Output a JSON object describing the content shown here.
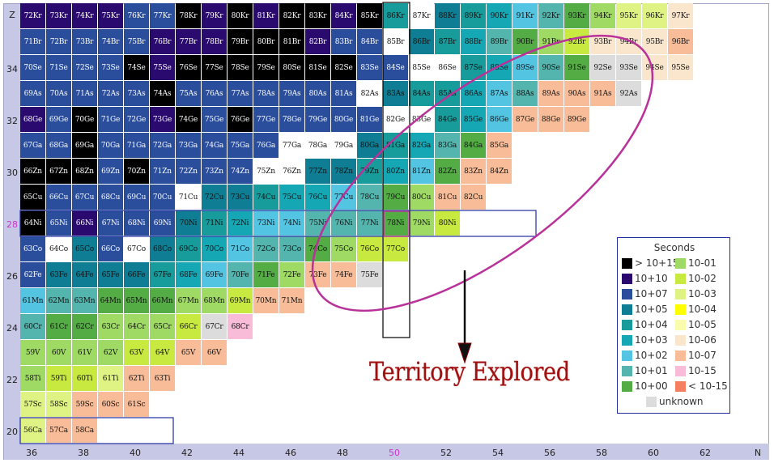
{
  "axes": {
    "z_label": "Z",
    "n_label": "N",
    "z_ticks": [
      "20",
      "22",
      "24",
      "26",
      "28",
      "30",
      "32",
      "34"
    ],
    "n_ticks": [
      "36",
      "38",
      "40",
      "42",
      "44",
      "46",
      "48",
      "50",
      "52",
      "54",
      "56",
      "58",
      "60",
      "62"
    ],
    "magic_z": "28",
    "magic_n": "50"
  },
  "chart_data": {
    "type": "table",
    "description_value_unit": "half-life category (seconds)",
    "rows": [
      {
        "z": 36,
        "symbol": "Kr",
        "n_start": 36,
        "cats": [
          11,
          11,
          11,
          10,
          9,
          9,
          15,
          10,
          15,
          14,
          15,
          15,
          11,
          15,
          4,
          6,
          5,
          4,
          3,
          2,
          1,
          0,
          -1,
          -3,
          -3,
          -6
        ]
      },
      {
        "z": 35,
        "symbol": "Br",
        "n_start": 36,
        "cats": [
          8,
          8,
          7,
          8,
          9,
          10,
          10,
          10,
          15,
          15,
          15,
          10,
          7,
          9,
          6,
          5,
          4,
          3,
          1,
          0,
          -1,
          -2,
          -6,
          -6,
          -6,
          -7
        ]
      },
      {
        "z": 34,
        "symbol": "Se",
        "n_start": 36,
        "cats": [
          8,
          7,
          8,
          9,
          15,
          12,
          15,
          15,
          15,
          15,
          15,
          15,
          15,
          7,
          7,
          6,
          6,
          4,
          3,
          2,
          1,
          0,
          -99,
          -99,
          -6,
          -6
        ]
      },
      {
        "z": 33,
        "symbol": "As",
        "n_start": 36,
        "cats": [
          7,
          8,
          8,
          8,
          8,
          15,
          9,
          8,
          8,
          8,
          7,
          7,
          7,
          6,
          5,
          4,
          4,
          3,
          2,
          1,
          -7,
          -7,
          -7,
          -99
        ]
      },
      {
        "z": 32,
        "symbol": "Ge",
        "n_start": 36,
        "cats": [
          11,
          9,
          15,
          8,
          9,
          10,
          15,
          8,
          15,
          9,
          8,
          8,
          7,
          7,
          6,
          6,
          4,
          3,
          2,
          -7,
          -7,
          -7
        ]
      },
      {
        "z": 31,
        "symbol": "Ga",
        "n_start": 36,
        "cats": [
          7,
          8,
          15,
          8,
          9,
          9,
          7,
          8,
          8,
          7,
          6,
          6,
          6,
          5,
          4,
          3,
          1,
          0,
          -7
        ]
      },
      {
        "z": 30,
        "symbol": "Zn",
        "n_start": 36,
        "cats": [
          15,
          15,
          15,
          9,
          15,
          8,
          9,
          7,
          7,
          6,
          6,
          5,
          5,
          4,
          3,
          2,
          0,
          -7,
          -7
        ]
      },
      {
        "z": 29,
        "symbol": "Cu",
        "n_start": 36,
        "cats": [
          15,
          8,
          9,
          7,
          7,
          7,
          6,
          5,
          5,
          4,
          3,
          3,
          2,
          1,
          0,
          -1,
          -7,
          -7
        ]
      },
      {
        "z": 28,
        "symbol": "Ni",
        "n_start": 36,
        "cats": [
          15,
          9,
          10,
          8,
          8,
          8,
          5,
          4,
          3,
          2,
          2,
          1,
          1,
          1,
          0,
          -1,
          -2
        ]
      },
      {
        "z": 27,
        "symbol": "Co",
        "n_start": 36,
        "cats": [
          7,
          6,
          5,
          7,
          6,
          5,
          4,
          3,
          2,
          1,
          1,
          0,
          -1,
          -2,
          -2
        ]
      },
      {
        "z": 26,
        "symbol": "Fe",
        "n_start": 36,
        "cats": [
          7,
          5,
          5,
          5,
          5,
          4,
          3,
          2,
          1,
          0,
          -1,
          -7,
          -7,
          -99
        ]
      },
      {
        "z": 25,
        "symbol": "Mn",
        "n_start": 36,
        "cats": [
          2,
          1,
          1,
          0,
          0,
          0,
          -1,
          -1,
          -2,
          -7,
          -7
        ]
      },
      {
        "z": 24,
        "symbol": "Cr",
        "n_start": 36,
        "cats": [
          1,
          0,
          0,
          -1,
          -1,
          -1,
          -2,
          -99,
          -15
        ]
      },
      {
        "z": 23,
        "symbol": "V",
        "n_start": 36,
        "cats": [
          -1,
          -1,
          -1,
          -1,
          -2,
          -2,
          -7,
          -7
        ]
      },
      {
        "z": 22,
        "symbol": "Ti",
        "n_start": 36,
        "cats": [
          -1,
          -2,
          -2,
          -3,
          -7,
          -7
        ]
      },
      {
        "z": 21,
        "symbol": "Sc",
        "n_start": 36,
        "cats": [
          -3,
          -3,
          -7,
          -7,
          -7
        ]
      },
      {
        "z": 20,
        "symbol": "Ca",
        "n_start": 36,
        "cats": [
          -3,
          -7,
          -7
        ]
      }
    ]
  },
  "legend": {
    "title": "Seconds",
    "left_items": [
      {
        "label": "> 10+15",
        "color": "#000000"
      },
      {
        "label": "10+10",
        "color": "#2a0a6e"
      },
      {
        "label": "10+07",
        "color": "#2a4e9c"
      },
      {
        "label": "10+05",
        "color": "#0f7d93"
      },
      {
        "label": "10+04",
        "color": "#179b9b"
      },
      {
        "label": "10+03",
        "color": "#16a7b5"
      },
      {
        "label": "10+02",
        "color": "#53c4e2"
      },
      {
        "label": "10+01",
        "color": "#53b5ad"
      },
      {
        "label": "10+00",
        "color": "#54ad44"
      }
    ],
    "right_items": [
      {
        "label": "10-01",
        "color": "#9fdb64"
      },
      {
        "label": "10-02",
        "color": "#c8ea40"
      },
      {
        "label": "10-03",
        "color": "#dff384"
      },
      {
        "label": "10-04",
        "color": "#ffff00"
      },
      {
        "label": "10-05",
        "color": "#fbfbad"
      },
      {
        "label": "10-06",
        "color": "#fae6cd"
      },
      {
        "label": "10-07",
        "color": "#f8bc98"
      },
      {
        "label": "10-15",
        "color": "#f8bcd9"
      },
      {
        "label": "< 10-15",
        "color": "#f57f60"
      }
    ],
    "unknown": {
      "label": "unknown",
      "color": "#dcdcdc"
    }
  },
  "annotation": {
    "text": "Territory Explored",
    "color": "#a01010"
  },
  "colors": {
    "ellipse": "#b8329a",
    "highlight_box": "#1f2da0",
    "arrow": "#000000"
  }
}
